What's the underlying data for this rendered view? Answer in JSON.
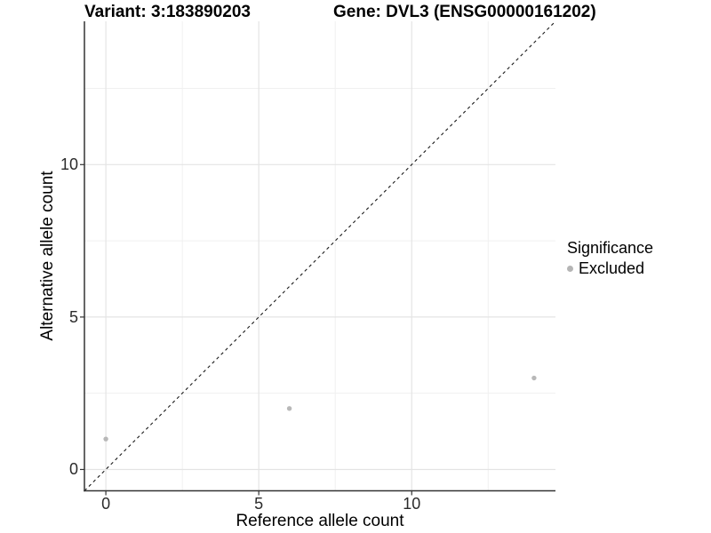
{
  "chart_data": {
    "type": "scatter",
    "title_left": "Variant: 3:183890203",
    "title_right": "Gene: DVL3 (ENSG00000161202)",
    "xlabel": "Reference allele count",
    "ylabel": "Alternative allele count",
    "xlim": [
      -0.7,
      14.7
    ],
    "ylim": [
      -0.7,
      14.7
    ],
    "x_ticks": [
      0,
      5,
      10
    ],
    "y_ticks": [
      0,
      5,
      10
    ],
    "x_tick_labels": [
      "0",
      "5",
      "10"
    ],
    "y_tick_labels": [
      "0",
      "5",
      "10"
    ],
    "x_minor_gridlines": [
      2.5,
      7.5,
      12.5
    ],
    "y_minor_gridlines": [
      2.5,
      7.5,
      12.5
    ],
    "grid": true,
    "legend_position": "right",
    "series": [
      {
        "name": "Excluded",
        "color": "#b8b8b8",
        "points": [
          [
            0,
            1
          ],
          [
            6,
            2
          ],
          [
            14,
            3
          ]
        ]
      }
    ],
    "identity_line": {
      "type": "dashed",
      "from": [
        -0.7,
        -0.7
      ],
      "to": [
        14.7,
        14.7
      ],
      "color": "#1a1a1a",
      "meaning": "y = x"
    },
    "legend": {
      "title": "Significance",
      "items": [
        {
          "label": "Excluded",
          "color": "#b5b5b5"
        }
      ]
    },
    "colors": {
      "background": "#ffffff",
      "grid_major": "#e4e4e4",
      "grid_minor": "#f0f0f0",
      "axis_line": "#333333",
      "tick_mark": "#333333",
      "point": "#b8b8b8"
    }
  }
}
